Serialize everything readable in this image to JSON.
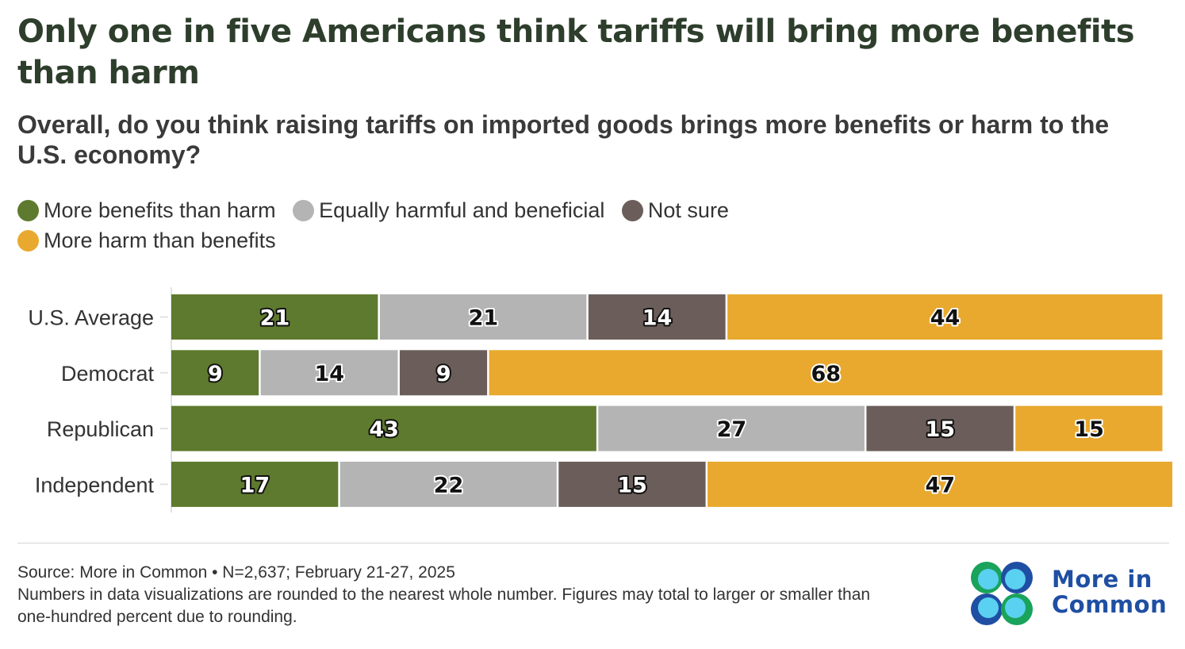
{
  "title": "Only one in five Americans think tariffs will bring more benefits than harm",
  "subtitle": "Overall, do you think raising tariffs on imported goods brings more benefits or harm to the U.S. economy?",
  "legend": [
    {
      "label": "More benefits than harm",
      "color": "#5e7a2e"
    },
    {
      "label": "Equally harmful and beneficial",
      "color": "#b4b4b4"
    },
    {
      "label": "Not sure",
      "color": "#6b5e5a"
    },
    {
      "label": "More harm than benefits",
      "color": "#e8a92e"
    }
  ],
  "chart_data": {
    "type": "bar",
    "orientation": "horizontal",
    "stacked": true,
    "categories": [
      "U.S. Average",
      "Democrat",
      "Republican",
      "Independent"
    ],
    "series": [
      {
        "name": "More benefits than harm",
        "color": "#5e7a2e",
        "values": [
          21,
          9,
          43,
          17
        ]
      },
      {
        "name": "Equally harmful and beneficial",
        "color": "#b4b4b4",
        "values": [
          21,
          14,
          27,
          22
        ]
      },
      {
        "name": "Not sure",
        "color": "#6b5e5a",
        "values": [
          14,
          9,
          15,
          15
        ]
      },
      {
        "name": "More harm than benefits",
        "color": "#e8a92e",
        "values": [
          44,
          68,
          15,
          47
        ]
      }
    ],
    "xlim": [
      0,
      100
    ],
    "grid": false,
    "legend_position": "top-left"
  },
  "footer": {
    "source": "Source: More in Common • N=2,637; February 21-27, 2025",
    "note": "Numbers in data visualizations are rounded to the nearest whole number. Figures may total to larger or smaller than one-hundred percent due to rounding."
  },
  "logo": {
    "line1": "More in",
    "line2": "Common",
    "colors": [
      "#1aa35b",
      "#2f9ee0",
      "#1f4fa3",
      "#5ad1f0"
    ]
  }
}
